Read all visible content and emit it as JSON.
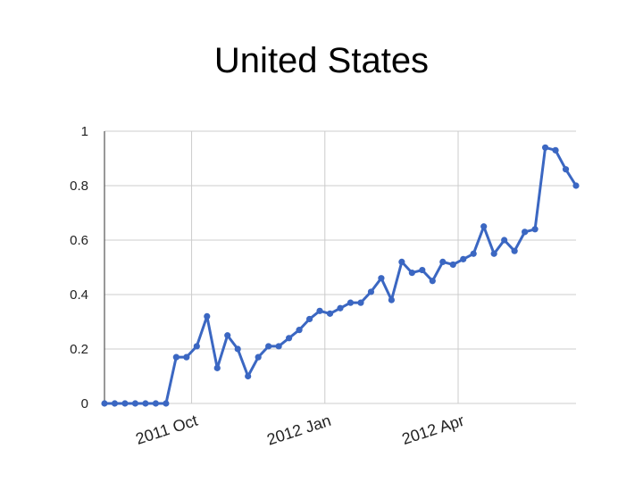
{
  "chart_data": {
    "type": "line",
    "title": "United States",
    "xlabel": "",
    "ylabel": "",
    "ylim": [
      0,
      1
    ],
    "yticks": [
      "0",
      "0.2",
      "0.4",
      "0.6",
      "0.8",
      "1"
    ],
    "yticks_values": [
      0,
      0.2,
      0.4,
      0.6,
      0.8,
      1
    ],
    "xticks": [
      {
        "label": "2011 Oct",
        "index": 8.5
      },
      {
        "label": "2012 Jan",
        "index": 21.5
      },
      {
        "label": "2012 Apr",
        "index": 34.5
      }
    ],
    "grid": true,
    "legend": "none",
    "color": "#3b67c2",
    "series": [
      {
        "values": [
          0,
          0,
          0,
          0,
          0,
          0,
          0,
          0.17,
          0.17,
          0.21,
          0.32,
          0.13,
          0.25,
          0.2,
          0.1,
          0.17,
          0.21,
          0.21,
          0.24,
          0.27,
          0.31,
          0.34,
          0.33,
          0.35,
          0.37,
          0.37,
          0.41,
          0.46,
          0.38,
          0.52,
          0.48,
          0.49,
          0.45,
          0.52,
          0.51,
          0.53,
          0.55,
          0.65,
          0.55,
          0.6,
          0.56,
          0.63,
          0.64,
          0.94,
          0.93,
          0.86,
          0.8
        ]
      }
    ]
  }
}
